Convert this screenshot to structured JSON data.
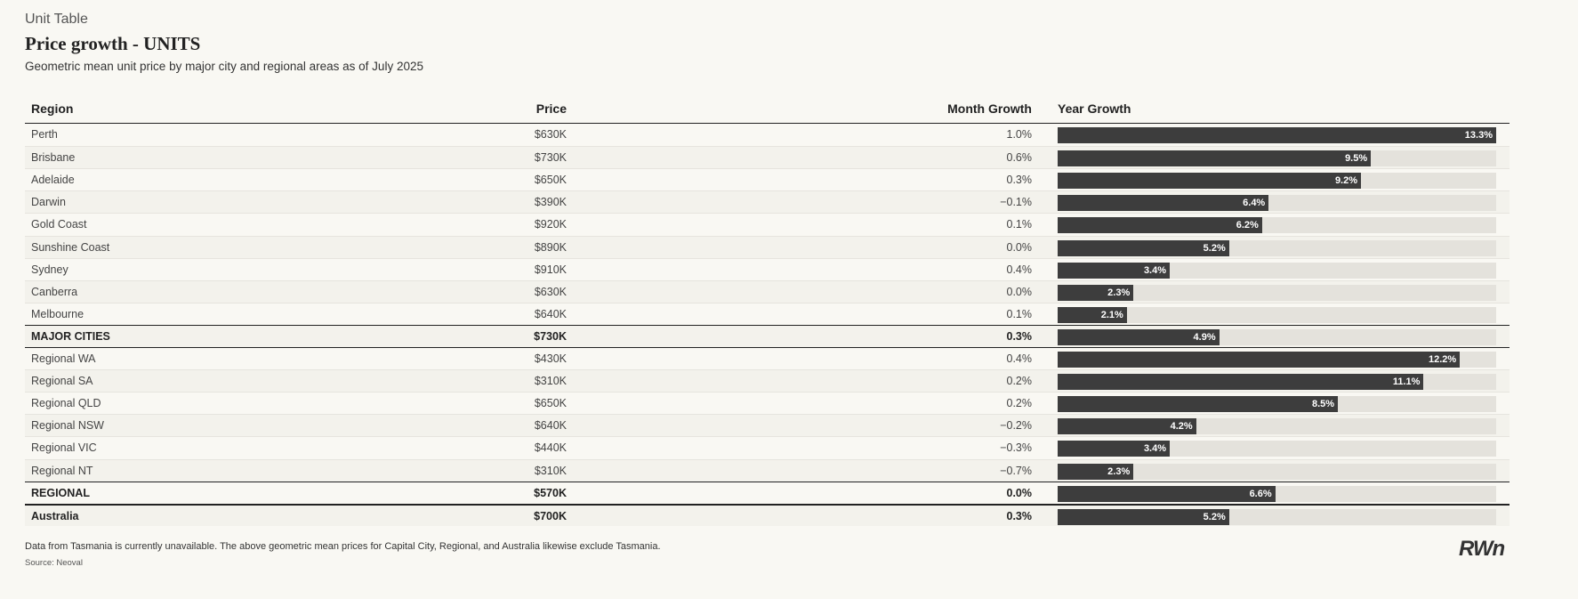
{
  "header": {
    "kicker": "Unit Table",
    "title": "Price growth  - UNITS",
    "subtitle": "Geometric mean unit price by major city and regional areas as of July 2025"
  },
  "table": {
    "columns": [
      "Region",
      "Price",
      "Month Growth",
      "Year Growth"
    ],
    "rows": [
      {
        "region": "Perth",
        "price": "$630K",
        "month_growth": "1.0%",
        "year_growth": 13.3,
        "year_growth_label": "13.3%"
      },
      {
        "region": "Brisbane",
        "price": "$730K",
        "month_growth": "0.6%",
        "year_growth": 9.5,
        "year_growth_label": "9.5%"
      },
      {
        "region": "Adelaide",
        "price": "$650K",
        "month_growth": "0.3%",
        "year_growth": 9.2,
        "year_growth_label": "9.2%"
      },
      {
        "region": "Darwin",
        "price": "$390K",
        "month_growth": "−0.1%",
        "year_growth": 6.4,
        "year_growth_label": "6.4%"
      },
      {
        "region": "Gold Coast",
        "price": "$920K",
        "month_growth": "0.1%",
        "year_growth": 6.2,
        "year_growth_label": "6.2%"
      },
      {
        "region": "Sunshine Coast",
        "price": "$890K",
        "month_growth": "0.0%",
        "year_growth": 5.2,
        "year_growth_label": "5.2%"
      },
      {
        "region": "Sydney",
        "price": "$910K",
        "month_growth": "0.4%",
        "year_growth": 3.4,
        "year_growth_label": "3.4%"
      },
      {
        "region": "Canberra",
        "price": "$630K",
        "month_growth": "0.0%",
        "year_growth": 2.3,
        "year_growth_label": "2.3%"
      },
      {
        "region": "Melbourne",
        "price": "$640K",
        "month_growth": "0.1%",
        "year_growth": 2.1,
        "year_growth_label": "2.1%"
      },
      {
        "region": "MAJOR CITIES",
        "price": "$730K",
        "month_growth": "0.3%",
        "year_growth": 4.9,
        "year_growth_label": "4.9%",
        "summary": true
      },
      {
        "region": "Regional WA",
        "price": "$430K",
        "month_growth": "0.4%",
        "year_growth": 12.2,
        "year_growth_label": "12.2%"
      },
      {
        "region": "Regional SA",
        "price": "$310K",
        "month_growth": "0.2%",
        "year_growth": 11.1,
        "year_growth_label": "11.1%"
      },
      {
        "region": "Regional QLD",
        "price": "$650K",
        "month_growth": "0.2%",
        "year_growth": 8.5,
        "year_growth_label": "8.5%"
      },
      {
        "region": "Regional NSW",
        "price": "$640K",
        "month_growth": "−0.2%",
        "year_growth": 4.2,
        "year_growth_label": "4.2%"
      },
      {
        "region": "Regional VIC",
        "price": "$440K",
        "month_growth": "−0.3%",
        "year_growth": 3.4,
        "year_growth_label": "3.4%"
      },
      {
        "region": "Regional NT",
        "price": "$310K",
        "month_growth": "−0.7%",
        "year_growth": 2.3,
        "year_growth_label": "2.3%"
      },
      {
        "region": "REGIONAL",
        "price": "$570K",
        "month_growth": "0.0%",
        "year_growth": 6.6,
        "year_growth_label": "6.6%",
        "summary": true
      },
      {
        "region": "Australia",
        "price": "$700K",
        "month_growth": "0.3%",
        "year_growth": 5.2,
        "year_growth_label": "5.2%",
        "summary": true
      }
    ]
  },
  "footer": {
    "note": "Data from Tasmania is currently unavailable. The above geometric mean prices for Capital City, Regional, and Australia likewise exclude Tasmania.",
    "source": "Source: Neoval",
    "logo": "RWn"
  }
}
